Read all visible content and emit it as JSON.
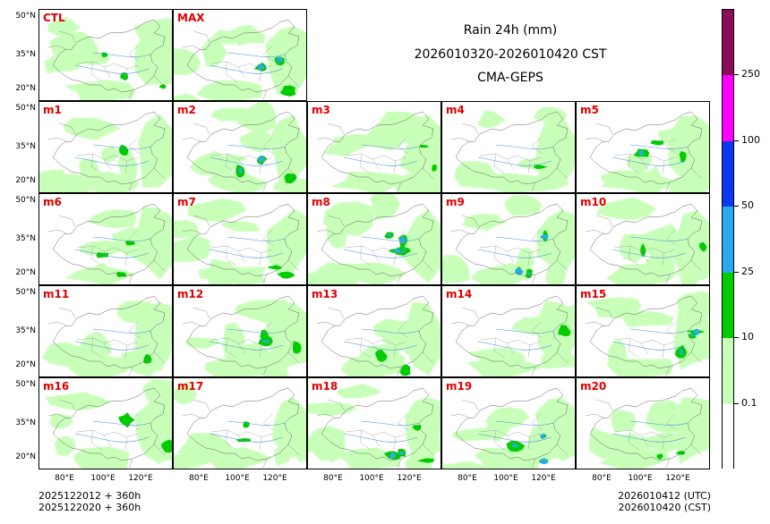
{
  "title": {
    "line1": "Rain 24h (mm)",
    "line2": "2026010320-2026010420 CST",
    "line3": "CMA-GEPS"
  },
  "top_panels": [
    {
      "label": "CTL"
    },
    {
      "label": "MAX"
    }
  ],
  "grid_panels": [
    {
      "label": "m1"
    },
    {
      "label": "m2"
    },
    {
      "label": "m3"
    },
    {
      "label": "m4"
    },
    {
      "label": "m5"
    },
    {
      "label": "m6"
    },
    {
      "label": "m7"
    },
    {
      "label": "m8"
    },
    {
      "label": "m9"
    },
    {
      "label": "m10"
    },
    {
      "label": "m11"
    },
    {
      "label": "m12"
    },
    {
      "label": "m13"
    },
    {
      "label": "m14"
    },
    {
      "label": "m15"
    },
    {
      "label": "m16"
    },
    {
      "label": "m17"
    },
    {
      "label": "m18"
    },
    {
      "label": "m19"
    },
    {
      "label": "m20"
    }
  ],
  "lat_labels": [
    "50°N",
    "35°N",
    "20°N"
  ],
  "lon_labels": [
    "80°E",
    "100°E",
    "120°E"
  ],
  "colorbar": {
    "levels": [
      "0.1",
      "10",
      "25",
      "50",
      "100",
      "250"
    ],
    "colors": [
      "#ffffff",
      "#c8ffb9",
      "#00cc00",
      "#29aaf0",
      "#0c38f0",
      "#ff00ff",
      "#8b0e5a"
    ]
  },
  "footer": {
    "left_line1": "2025122012 + 360h",
    "left_line2": "2025122020 + 360h",
    "right_line1": "2026010412 (UTC)",
    "right_line2": "2026010420 (CST)"
  }
}
